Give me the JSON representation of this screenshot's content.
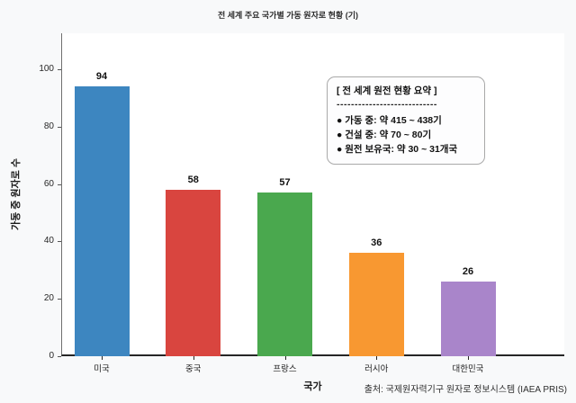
{
  "title": "전 세계 주요 국가별 가동 원자로 현황 (기)",
  "chart_data": {
    "type": "bar",
    "categories": [
      "미국",
      "중국",
      "프랑스",
      "러시아",
      "대한민국"
    ],
    "values": [
      94,
      58,
      57,
      36,
      26
    ],
    "bar_colors": [
      "#3d86c0",
      "#d9453f",
      "#4aa84e",
      "#f89831",
      "#a985ca"
    ],
    "value_labels": [
      "94",
      "58",
      "57",
      "36",
      "26"
    ],
    "title": "전 세계 주요 국가별 가동 원자로 현황 (기)",
    "xlabel": "국가",
    "ylabel": "가동 중 원자로 수",
    "yticks": [
      0,
      20,
      40,
      60,
      80,
      100
    ],
    "ylim": [
      0,
      112
    ],
    "grid": false,
    "legend": "none",
    "plot_bg": "#ffffff",
    "figure_bg": "#f8f9fa"
  },
  "annotation": {
    "title": "[ 전 세계 원전 현황 요약 ]",
    "divider": "----------------------------",
    "items": [
      "● 가동 중: 약 415 ~ 438기",
      "● 건설 중: 약 70 ~ 80기",
      "● 원전 보유국: 약 30 ~ 31개국"
    ]
  },
  "source": "출처: 국제원자력기구 원자로 정보시스템 (IAEA PRIS)"
}
